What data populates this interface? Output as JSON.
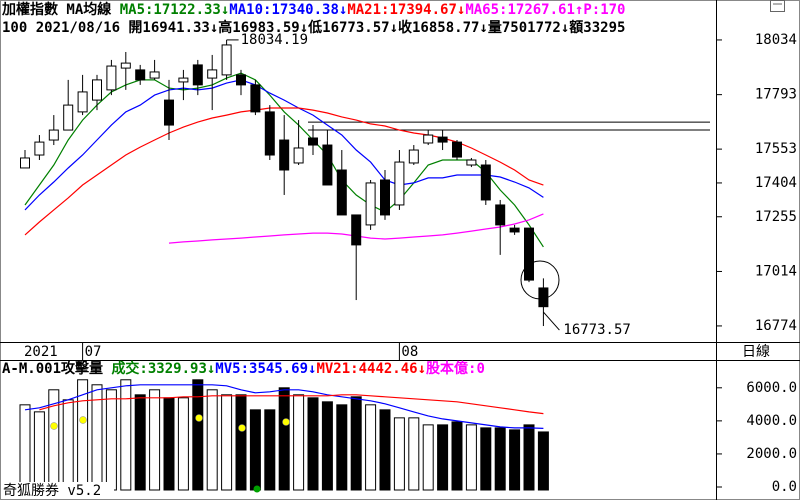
{
  "chart_data": [
    {
      "type": "candlestick",
      "header": [
        {
          "text": "加權指數 MA均線 ",
          "color": "#000000"
        },
        {
          "text": "MA5:17122.33↓",
          "color": "#008000"
        },
        {
          "text": "MA10:17340.38↓",
          "color": "#0000ff"
        },
        {
          "text": "MA21:17394.67↓",
          "color": "#ff0000"
        },
        {
          "text": "MA65:17267.61↑",
          "color": "#ff00ff"
        },
        {
          "text": "P:170",
          "color": "#ff00ff"
        }
      ],
      "info": "100 2021/08/16 開16941.33↓高16983.59↓低16773.57↓收16858.77↓量7501772↓額33295",
      "period": "日線",
      "year_label": "2021",
      "categories": [
        null,
        null,
        null,
        null,
        "07",
        null,
        null,
        null,
        null,
        null,
        null,
        null,
        null,
        null,
        null,
        null,
        null,
        null,
        null,
        null,
        null,
        null,
        null,
        null,
        null,
        null,
        "08",
        null,
        null,
        null,
        null,
        null,
        null,
        null,
        null,
        null,
        null
      ],
      "ohlc": [
        [
          17470,
          17549,
          17470,
          17514
        ],
        [
          17527,
          17615,
          17505,
          17584
        ],
        [
          17593,
          17703,
          17571,
          17637
        ],
        [
          17637,
          17858,
          17637,
          17747
        ],
        [
          17717,
          17880,
          17703,
          17805
        ],
        [
          17769,
          17880,
          17725,
          17858
        ],
        [
          17814,
          17946,
          17791,
          17919
        ],
        [
          17910,
          17981,
          17814,
          17932
        ],
        [
          17902,
          17924,
          17836,
          17858
        ],
        [
          17866,
          17946,
          17858,
          17893
        ],
        [
          17769,
          17858,
          17593,
          17659
        ],
        [
          17849,
          17902,
          17769,
          17866
        ],
        [
          17924,
          17946,
          17791,
          17836
        ],
        [
          17866,
          17968,
          17725,
          17902
        ],
        [
          17880,
          18034.19,
          17858,
          18012
        ],
        [
          17880,
          17902,
          17791,
          17836
        ],
        [
          17836,
          17858,
          17703,
          17717
        ],
        [
          17717,
          17747,
          17505,
          17527
        ],
        [
          17593,
          17703,
          17351,
          17461
        ],
        [
          17492,
          17681,
          17483,
          17558
        ],
        [
          17602,
          17659,
          17527,
          17571
        ],
        [
          17571,
          17637,
          17395,
          17395
        ],
        [
          17461,
          17549,
          17263,
          17263
        ],
        [
          17263,
          17263,
          16888,
          17131
        ],
        [
          17219,
          17417,
          17197,
          17404
        ],
        [
          17417,
          17461,
          17241,
          17263
        ],
        [
          17307,
          17549,
          17285,
          17496
        ],
        [
          17492,
          17571,
          17483,
          17549
        ],
        [
          17580,
          17637,
          17571,
          17615
        ],
        [
          17606,
          17637,
          17549,
          17584
        ],
        [
          17584,
          17593,
          17505,
          17518
        ],
        [
          17483,
          17514,
          17474,
          17505
        ],
        [
          17483,
          17505,
          17307,
          17329
        ],
        [
          17307,
          17329,
          17087,
          17219
        ],
        [
          17205,
          17219,
          17175,
          17188
        ],
        [
          17205,
          17205,
          16967,
          16976
        ],
        [
          16941.33,
          16983.59,
          16773.57,
          16858.77
        ]
      ],
      "series": [
        {
          "name": "MA5",
          "color": "#008000",
          "values": [
            17307,
            17395,
            17483,
            17593,
            17681,
            17747,
            17805,
            17836,
            17858,
            17858,
            17822,
            17814,
            17822,
            17836,
            17866,
            17888,
            17858,
            17791,
            17717,
            17659,
            17593,
            17527,
            17417,
            17351,
            17307,
            17276,
            17329,
            17404,
            17483,
            17505,
            17505,
            17505,
            17452,
            17373,
            17307,
            17219,
            17122.33
          ]
        },
        {
          "name": "MA10",
          "color": "#0000ff",
          "values": [
            17285,
            17351,
            17408,
            17470,
            17527,
            17593,
            17659,
            17717,
            17747,
            17791,
            17814,
            17822,
            17814,
            17822,
            17844,
            17858,
            17836,
            17800,
            17769,
            17734,
            17703,
            17659,
            17615,
            17549,
            17496,
            17417,
            17395,
            17404,
            17426,
            17426,
            17439,
            17439,
            17439,
            17430,
            17408,
            17382,
            17340.38
          ]
        },
        {
          "name": "MA21",
          "color": "#ff0000",
          "values": [
            17175,
            17232,
            17285,
            17338,
            17395,
            17439,
            17483,
            17527,
            17562,
            17593,
            17624,
            17650,
            17672,
            17690,
            17703,
            17717,
            17725,
            17734,
            17734,
            17734,
            17725,
            17712,
            17695,
            17681,
            17664,
            17655,
            17637,
            17624,
            17615,
            17602,
            17584,
            17558,
            17527,
            17496,
            17461,
            17417,
            17394.67
          ]
        },
        {
          "name": "MA65",
          "color": "#ff00ff",
          "values": [
            null,
            null,
            null,
            null,
            null,
            null,
            null,
            null,
            null,
            null,
            17139,
            17144,
            17148,
            17153,
            17157,
            17161,
            17166,
            17170,
            17175,
            17179,
            17183,
            17183,
            17179,
            17170,
            17161,
            17157,
            17161,
            17166,
            17170,
            17175,
            17183,
            17192,
            17201,
            17210,
            17223,
            17241,
            17267.61
          ]
        }
      ],
      "levels": [
        17672,
        17637
      ],
      "high_label": "18034.19",
      "low_label": "16773.57",
      "ylim": [
        16712,
        18210
      ],
      "yticks": [
        18034,
        17793,
        17553,
        17404,
        17255,
        17014,
        16774
      ],
      "up_color": "#ffffff",
      "down_color": "#000000"
    },
    {
      "type": "volume",
      "header": [
        {
          "text": "A-M.001攻擊量 ",
          "color": "#000000"
        },
        {
          "text": "成交:3329.93↓",
          "color": "#008000"
        },
        {
          "text": "MV5:3545.69↓",
          "color": "#0000ff"
        },
        {
          "text": "MV21:4442.46↓",
          "color": "#ff0000"
        },
        {
          "text": "股本億:0",
          "color": "#ff00ff"
        }
      ],
      "footer": "奇狐勝券 v5.2",
      "values": [
        4970,
        4545,
        5879,
        5273,
        6485,
        6182,
        5879,
        6485,
        5576,
        5879,
        5394,
        5394,
        6485,
        5879,
        5576,
        5576,
        4667,
        4667,
        6000,
        5576,
        5394,
        5152,
        4970,
        5455,
        4970,
        4667,
        4182,
        4182,
        3758,
        3758,
        3939,
        3758,
        3576,
        3576,
        3455,
        3758,
        3329.93
      ],
      "series": [
        {
          "name": "MV5",
          "color": "#0000ff",
          "values": [
            4667,
            4788,
            5030,
            5273,
            5576,
            5879,
            6000,
            6121,
            6182,
            6182,
            6182,
            6182,
            6182,
            6182,
            6121,
            5879,
            5697,
            5758,
            5879,
            5879,
            5758,
            5576,
            5455,
            5333,
            5212,
            5030,
            4788,
            4545,
            4303,
            4121,
            4000,
            3879,
            3758,
            3636,
            3576,
            3576,
            3545.69
          ]
        },
        {
          "name": "MV21",
          "color": "#ff0000",
          "values": [
            null,
            4667,
            4909,
            5091,
            5212,
            5273,
            5333,
            5333,
            5394,
            5394,
            5394,
            5455,
            5455,
            5515,
            5515,
            5515,
            5515,
            5515,
            5515,
            5515,
            5515,
            5515,
            5576,
            5576,
            5515,
            5455,
            5394,
            5333,
            5273,
            5212,
            5152,
            5030,
            4909,
            4788,
            4667,
            4545,
            4442.46
          ]
        }
      ],
      "ylim": [
        0,
        7500
      ],
      "yticks": [
        {
          "value": 6000,
          "label": "6000.0"
        },
        {
          "value": 4000,
          "label": "4000.0"
        },
        {
          "value": 2000,
          "label": "2000.0"
        },
        {
          "value": 0,
          "label": "0.0"
        }
      ]
    }
  ]
}
